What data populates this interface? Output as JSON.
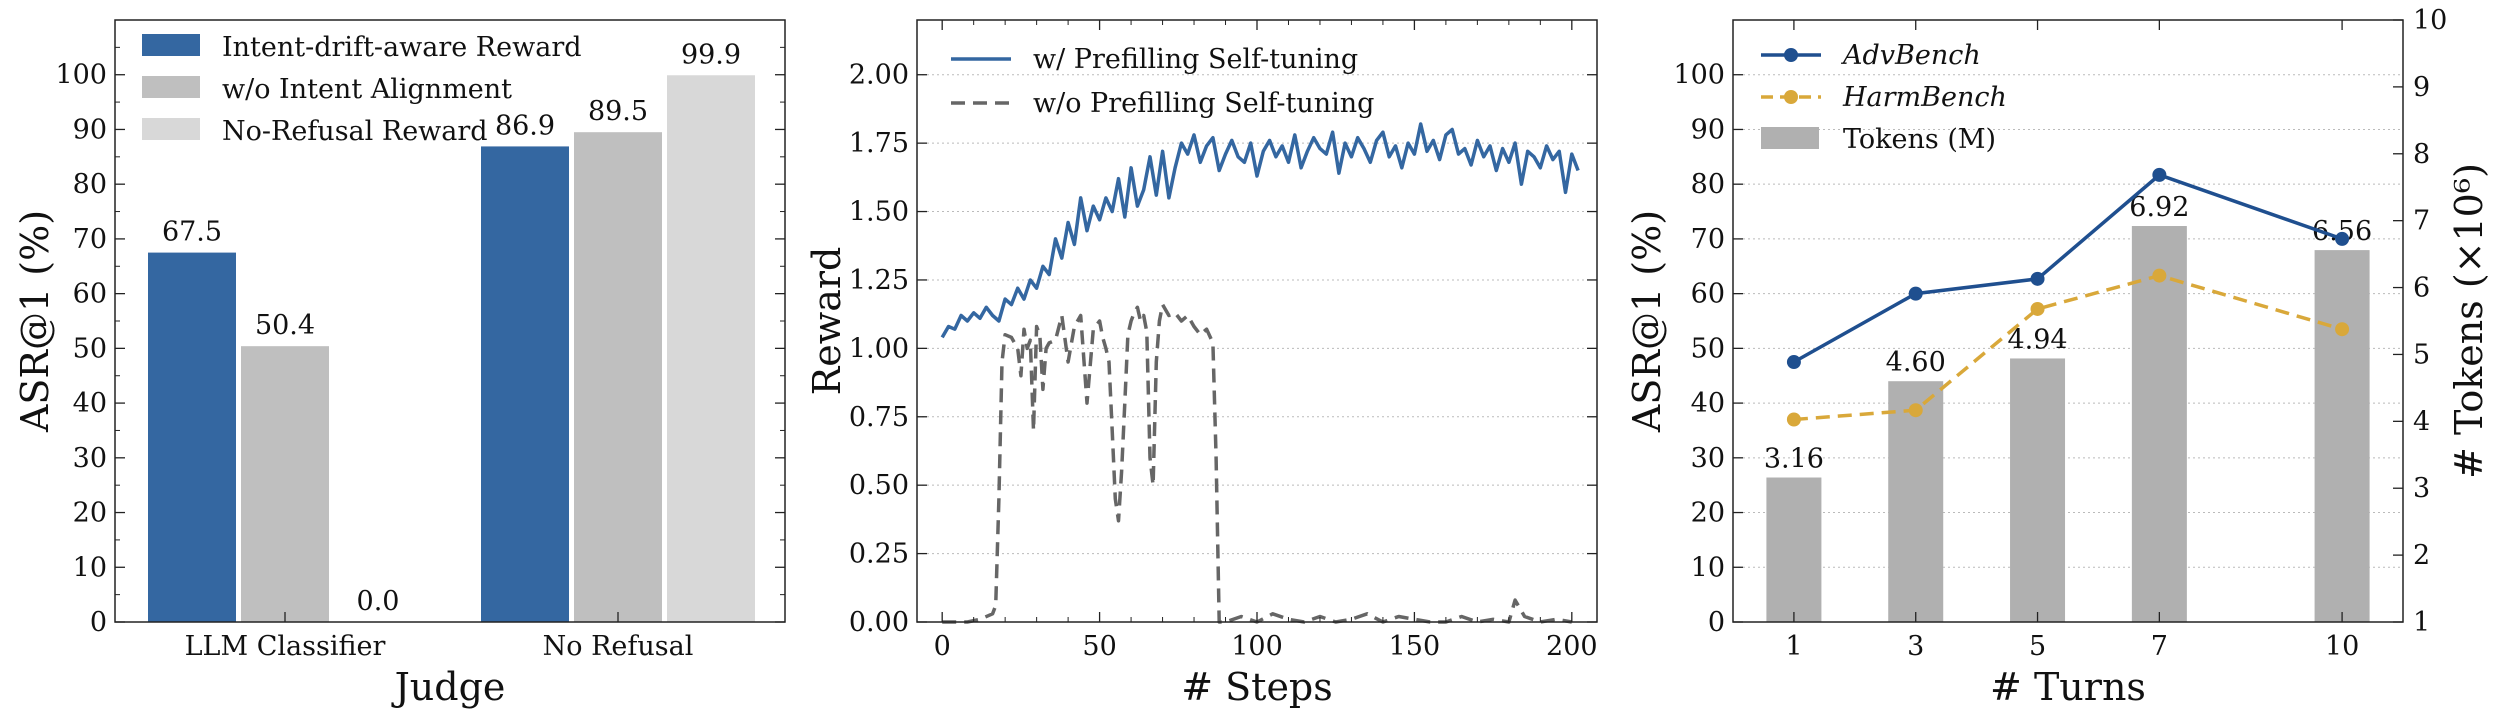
{
  "chart_data": [
    {
      "type": "bar",
      "xlabel": "Judge",
      "ylabel": "ASR@1 (%)",
      "ylim": [
        0,
        110
      ],
      "yticks": [
        0,
        10,
        20,
        30,
        40,
        50,
        60,
        70,
        80,
        90,
        100
      ],
      "categories": [
        "LLM Classifier",
        "No Refusal"
      ],
      "series": [
        {
          "name": "Intent-drift-aware Reward",
          "values": [
            67.5,
            86.9
          ],
          "labels": [
            "67.5",
            "86.9"
          ],
          "color": "#3467a1"
        },
        {
          "name": "w/o Intent Alignment",
          "values": [
            50.4,
            89.5
          ],
          "labels": [
            "50.4",
            "89.5"
          ],
          "color": "#bfbfbf"
        },
        {
          "name": "No-Refusal Reward",
          "values": [
            0.0,
            99.9
          ],
          "labels": [
            "0.0",
            "99.9"
          ],
          "color": "#d8d8d8"
        }
      ],
      "legend_position": "top-left",
      "grid": false
    },
    {
      "type": "line",
      "xlabel": "# Steps",
      "ylabel": "Reward",
      "xlim": [
        -8,
        208
      ],
      "ylim": [
        0,
        2.2
      ],
      "xticks": [
        0,
        50,
        100,
        150,
        200
      ],
      "yticks": [
        "0.00",
        "0.25",
        "0.50",
        "0.75",
        "1.00",
        "1.25",
        "1.50",
        "1.75",
        "2.00"
      ],
      "series": [
        {
          "name": "w/ Prefilling Self-tuning",
          "style": "solid",
          "color": "#3467a1",
          "x": [
            0,
            2,
            4,
            6,
            8,
            10,
            12,
            14,
            16,
            18,
            20,
            22,
            24,
            26,
            28,
            30,
            32,
            34,
            36,
            38,
            40,
            42,
            44,
            46,
            48,
            50,
            52,
            54,
            56,
            58,
            60,
            62,
            64,
            66,
            68,
            70,
            72,
            74,
            76,
            78,
            80,
            82,
            84,
            86,
            88,
            90,
            92,
            94,
            96,
            98,
            100,
            102,
            104,
            106,
            108,
            110,
            112,
            114,
            116,
            118,
            120,
            122,
            124,
            126,
            128,
            130,
            132,
            134,
            136,
            138,
            140,
            142,
            144,
            146,
            148,
            150,
            152,
            154,
            156,
            158,
            160,
            162,
            164,
            166,
            168,
            170,
            172,
            174,
            176,
            178,
            180,
            182,
            184,
            186,
            188,
            190,
            192,
            194,
            196,
            198,
            200,
            202
          ],
          "y": [
            1.04,
            1.08,
            1.07,
            1.12,
            1.1,
            1.13,
            1.11,
            1.15,
            1.12,
            1.1,
            1.18,
            1.16,
            1.22,
            1.18,
            1.25,
            1.22,
            1.3,
            1.27,
            1.4,
            1.33,
            1.46,
            1.38,
            1.55,
            1.43,
            1.52,
            1.47,
            1.55,
            1.5,
            1.62,
            1.48,
            1.66,
            1.52,
            1.58,
            1.7,
            1.56,
            1.72,
            1.55,
            1.66,
            1.75,
            1.71,
            1.78,
            1.68,
            1.74,
            1.77,
            1.65,
            1.71,
            1.76,
            1.7,
            1.68,
            1.75,
            1.63,
            1.72,
            1.76,
            1.7,
            1.74,
            1.68,
            1.78,
            1.66,
            1.72,
            1.77,
            1.73,
            1.71,
            1.79,
            1.64,
            1.75,
            1.7,
            1.77,
            1.73,
            1.68,
            1.76,
            1.79,
            1.7,
            1.74,
            1.66,
            1.75,
            1.71,
            1.82,
            1.72,
            1.76,
            1.69,
            1.78,
            1.8,
            1.71,
            1.73,
            1.67,
            1.76,
            1.7,
            1.74,
            1.65,
            1.73,
            1.68,
            1.75,
            1.6,
            1.72,
            1.7,
            1.66,
            1.74,
            1.69,
            1.72,
            1.57,
            1.71,
            1.65
          ]
        },
        {
          "name": "w/o Prefilling Self-tuning",
          "style": "dashed",
          "color": "#666666",
          "x": [
            0,
            4,
            8,
            12,
            16,
            17,
            18,
            19,
            20,
            22,
            24,
            25,
            26,
            27,
            28,
            29,
            30,
            31,
            32,
            33,
            34,
            36,
            38,
            40,
            42,
            44,
            46,
            48,
            50,
            51,
            52,
            53,
            54,
            55,
            56,
            57,
            58,
            59,
            60,
            61,
            62,
            63,
            64,
            65,
            66,
            67,
            68,
            69,
            70,
            72,
            74,
            76,
            78,
            80,
            82,
            84,
            86,
            87,
            88,
            89,
            90,
            95,
            100,
            105,
            110,
            115,
            120,
            125,
            130,
            135,
            140,
            145,
            150,
            155,
            160,
            165,
            170,
            175,
            180,
            182,
            185,
            190,
            195,
            200
          ],
          "y": [
            0.0,
            0.0,
            0.0,
            0.01,
            0.03,
            0.06,
            0.45,
            0.95,
            1.05,
            1.04,
            1.0,
            0.9,
            1.07,
            1.0,
            1.03,
            0.7,
            1.08,
            1.05,
            0.85,
            1.0,
            1.02,
            1.03,
            1.12,
            0.95,
            1.08,
            1.12,
            0.8,
            1.07,
            1.1,
            1.04,
            1.0,
            0.95,
            0.7,
            0.45,
            0.37,
            0.55,
            0.8,
            1.05,
            1.1,
            1.13,
            1.15,
            1.1,
            1.12,
            1.06,
            0.6,
            0.5,
            0.95,
            1.1,
            1.16,
            1.12,
            1.13,
            1.1,
            1.12,
            1.08,
            1.05,
            1.07,
            1.02,
            0.6,
            0.0,
            0.0,
            0.0,
            0.02,
            0.0,
            0.03,
            0.01,
            0.0,
            0.02,
            0.0,
            0.01,
            0.03,
            0.0,
            0.02,
            0.01,
            0.0,
            0.0,
            0.02,
            0.0,
            0.01,
            0.0,
            0.08,
            0.02,
            0.0,
            0.01,
            0.0
          ]
        }
      ],
      "legend_position": "top-left",
      "grid": true
    },
    {
      "type": "bar+line",
      "xlabel": "# Turns",
      "ylabel": "ASR@1 (%)",
      "y2label": "# Tokens (×10⁶)",
      "ylim": [
        0,
        110
      ],
      "yticks": [
        0,
        10,
        20,
        30,
        40,
        50,
        60,
        70,
        80,
        90,
        100
      ],
      "y2lim": [
        1,
        10
      ],
      "y2ticks": [
        1,
        2,
        3,
        4,
        5,
        6,
        7,
        8,
        9,
        10
      ],
      "x": [
        1,
        3,
        5,
        7,
        10
      ],
      "xticks": [
        "1",
        "3",
        "5",
        "7",
        "10"
      ],
      "bars": {
        "name": "Tokens (M)",
        "axis": "right",
        "color": "#b0b0b0",
        "values": [
          3.16,
          4.6,
          4.94,
          6.92,
          6.56
        ],
        "labels": [
          "3.16",
          "4.60",
          "4.94",
          "6.92",
          "6.56"
        ]
      },
      "series": [
        {
          "name": "AdvBench",
          "style": "solid",
          "color": "#1f4f8f",
          "values": [
            47.5,
            60.0,
            62.7,
            81.7,
            70.0
          ]
        },
        {
          "name": "HarmBench",
          "style": "dashed",
          "color": "#d9a83a",
          "values": [
            37.0,
            38.7,
            57.2,
            63.3,
            53.5
          ]
        }
      ],
      "legend_position": "top-left",
      "grid": true
    }
  ]
}
